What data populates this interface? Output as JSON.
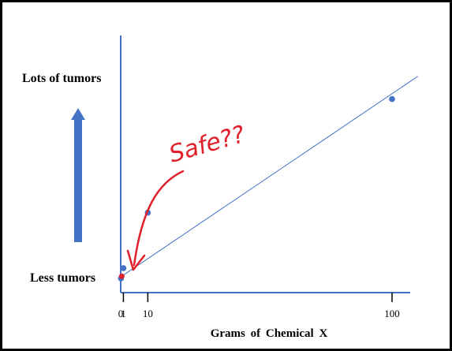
{
  "chart_data": {
    "type": "scatter",
    "xlabel": "Grams of Chemical X",
    "ylabel_top": "Lots of tumors",
    "ylabel_bottom": "Less tumors",
    "x_ticks": [
      {
        "value": 0,
        "label": "0"
      },
      {
        "value": 1,
        "label": "1"
      },
      {
        "value": 10,
        "label": "10"
      },
      {
        "value": 100,
        "label": "100"
      }
    ],
    "xlim": [
      0,
      110
    ],
    "ylim": [
      0,
      100
    ],
    "points": [
      {
        "x": 0.1,
        "y": 0
      },
      {
        "x": 1,
        "y": 5.6
      },
      {
        "x": 10,
        "y": 35.8
      },
      {
        "x": 100,
        "y": 97.6
      }
    ],
    "highlight_point": {
      "x": 0.4,
      "y": 1.2
    },
    "trend_line": {
      "x1": 0.4,
      "y1": 1.2,
      "x2": 109.5,
      "y2": 110
    },
    "annotation": "Safe??",
    "colors": {
      "axis": "#4472c4",
      "point": "#4472c4",
      "trend": "#4472c4",
      "highlight": "#e0202a",
      "annotation": "#e0202a",
      "arrow": "#4472c4"
    }
  }
}
